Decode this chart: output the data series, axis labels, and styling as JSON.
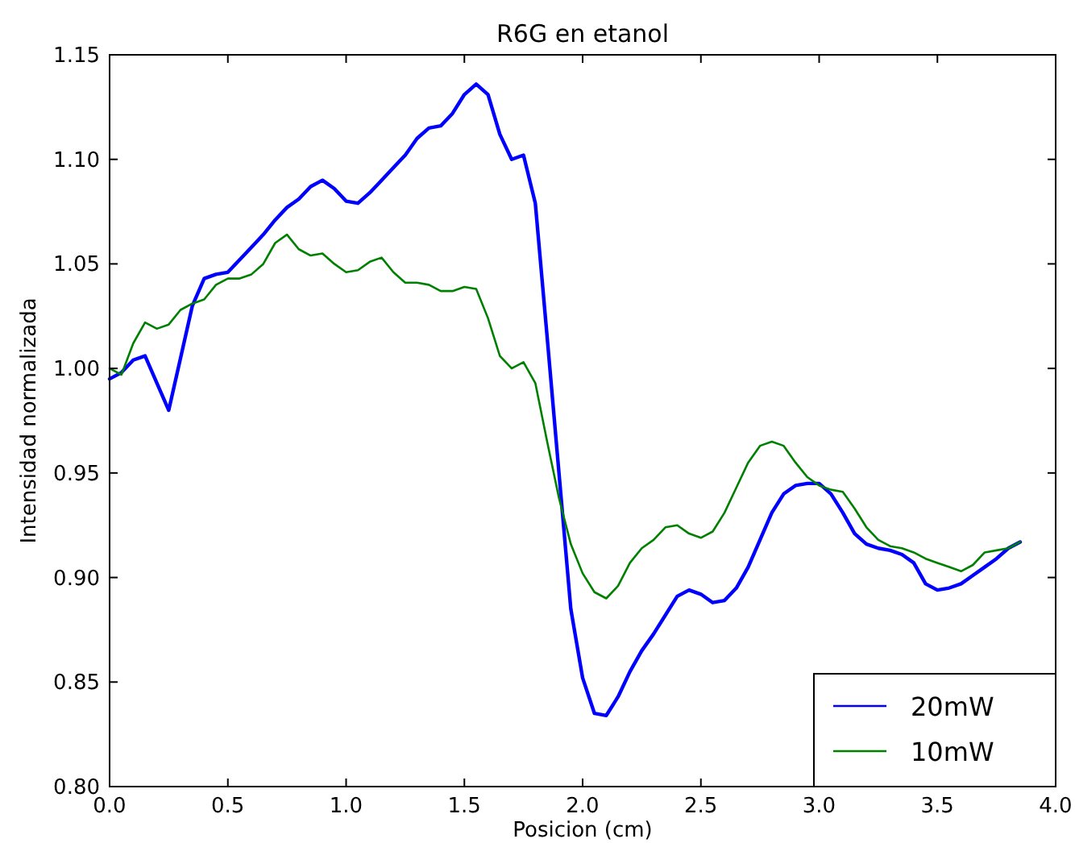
{
  "chart_data": {
    "type": "line",
    "title": "R6G en etanol",
    "xlabel": "Posicion (cm)",
    "ylabel": "Intensidad normalizada",
    "x": [
      0,
      0.05,
      0.1,
      0.15,
      0.2,
      0.25,
      0.3,
      0.35,
      0.4,
      0.45,
      0.5,
      0.55,
      0.6,
      0.65,
      0.7,
      0.75,
      0.8,
      0.85,
      0.9,
      0.95,
      1.0,
      1.05,
      1.1,
      1.15,
      1.2,
      1.25,
      1.3,
      1.35,
      1.4,
      1.45,
      1.5,
      1.55,
      1.6,
      1.65,
      1.7,
      1.75,
      1.8,
      1.85,
      1.9,
      1.95,
      2.0,
      2.05,
      2.1,
      2.15,
      2.2,
      2.25,
      2.3,
      2.35,
      2.4,
      2.45,
      2.5,
      2.55,
      2.6,
      2.65,
      2.7,
      2.75,
      2.8,
      2.85,
      2.9,
      2.95,
      3.0,
      3.05,
      3.1,
      3.15,
      3.2,
      3.25,
      3.3,
      3.35,
      3.4,
      3.45,
      3.5,
      3.55,
      3.6,
      3.65,
      3.7,
      3.75,
      3.8,
      3.85
    ],
    "series": [
      {
        "name": "20mW",
        "color": "#0000ff",
        "values": [
          0.995,
          0.998,
          1.004,
          1.006,
          0.993,
          0.98,
          1.005,
          1.03,
          1.043,
          1.045,
          1.046,
          1.052,
          1.058,
          1.064,
          1.071,
          1.077,
          1.081,
          1.087,
          1.09,
          1.086,
          1.08,
          1.079,
          1.084,
          1.09,
          1.096,
          1.102,
          1.11,
          1.115,
          1.116,
          1.122,
          1.131,
          1.136,
          1.131,
          1.112,
          1.1,
          1.102,
          1.079,
          1.015,
          0.95,
          0.885,
          0.852,
          0.835,
          0.834,
          0.843,
          0.855,
          0.865,
          0.873,
          0.882,
          0.891,
          0.894,
          0.892,
          0.888,
          0.889,
          0.895,
          0.905,
          0.918,
          0.931,
          0.94,
          0.944,
          0.945,
          0.945,
          0.94,
          0.931,
          0.921,
          0.916,
          0.914,
          0.913,
          0.911,
          0.907,
          0.897,
          0.894,
          0.895,
          0.897,
          0.901,
          0.905,
          0.909,
          0.914,
          0.917
        ]
      },
      {
        "name": "10mW",
        "color": "#008000",
        "values": [
          1.0,
          0.997,
          1.012,
          1.022,
          1.019,
          1.021,
          1.028,
          1.031,
          1.033,
          1.04,
          1.043,
          1.043,
          1.045,
          1.05,
          1.06,
          1.064,
          1.057,
          1.054,
          1.055,
          1.05,
          1.046,
          1.047,
          1.051,
          1.053,
          1.046,
          1.041,
          1.041,
          1.04,
          1.037,
          1.037,
          1.039,
          1.038,
          1.024,
          1.006,
          1.0,
          1.003,
          0.993,
          0.965,
          0.938,
          0.916,
          0.902,
          0.893,
          0.89,
          0.896,
          0.907,
          0.914,
          0.918,
          0.924,
          0.925,
          0.921,
          0.919,
          0.922,
          0.931,
          0.943,
          0.955,
          0.963,
          0.965,
          0.963,
          0.955,
          0.948,
          0.944,
          0.942,
          0.941,
          0.933,
          0.924,
          0.918,
          0.915,
          0.914,
          0.912,
          0.909,
          0.907,
          0.905,
          0.903,
          0.906,
          0.912,
          0.913,
          0.914,
          0.917
        ]
      }
    ],
    "xlim": [
      0,
      4
    ],
    "xticks": [
      {
        "value": 0,
        "label": "0.0"
      },
      {
        "value": 0.5,
        "label": "0.5"
      },
      {
        "value": 1,
        "label": "1.0"
      },
      {
        "value": 1.5,
        "label": "1.5"
      },
      {
        "value": 2,
        "label": "2.0"
      },
      {
        "value": 2.5,
        "label": "2.5"
      },
      {
        "value": 3,
        "label": "3.0"
      },
      {
        "value": 3.5,
        "label": "3.5"
      },
      {
        "value": 4,
        "label": "4.0"
      }
    ],
    "ylim": [
      0.8,
      1.15
    ],
    "yticks": [
      {
        "value": 0.8,
        "label": "0.80"
      },
      {
        "value": 0.85,
        "label": "0.85"
      },
      {
        "value": 0.9,
        "label": "0.90"
      },
      {
        "value": 0.95,
        "label": "0.95"
      },
      {
        "value": 1.0,
        "label": "1.00"
      },
      {
        "value": 1.05,
        "label": "1.05"
      },
      {
        "value": 1.1,
        "label": "1.10"
      },
      {
        "value": 1.15,
        "label": "1.15"
      }
    ],
    "grid": false,
    "legend": "bottom right",
    "marker": "none",
    "line_style": "solid"
  }
}
